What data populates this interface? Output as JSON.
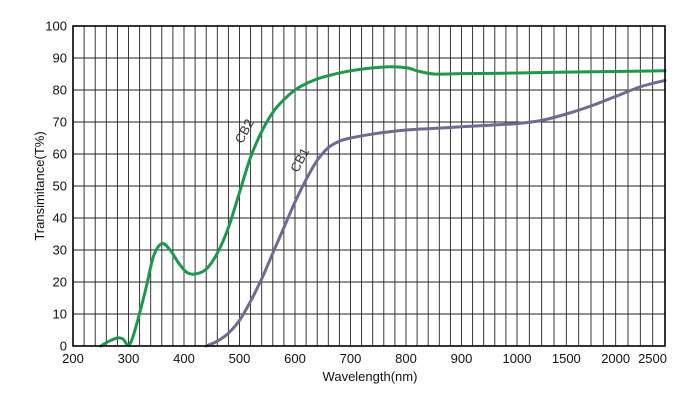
{
  "chart_data": {
    "type": "line",
    "title": "",
    "xlabel": "Wavelength(nm)",
    "ylabel": "Transimitance(T%)",
    "x_ticks": [
      "200",
      "300",
      "400",
      "500",
      "600",
      "700",
      "800",
      "900",
      "1000",
      "1500",
      "2000",
      "2500"
    ],
    "ylim": [
      0,
      100
    ],
    "y_ticks": [
      "0",
      "10",
      "20",
      "30",
      "40",
      "50",
      "60",
      "70",
      "80",
      "90",
      "100"
    ],
    "grid": true,
    "legend": "none",
    "series": [
      {
        "name": "CB2",
        "color": "#1a9a4c",
        "points": [
          [
            250,
            0
          ],
          [
            265,
            1.5
          ],
          [
            280,
            2.5
          ],
          [
            290,
            2.2
          ],
          [
            300,
            0.3
          ],
          [
            310,
            4
          ],
          [
            330,
            17
          ],
          [
            345,
            28
          ],
          [
            360,
            32
          ],
          [
            375,
            30
          ],
          [
            390,
            26
          ],
          [
            405,
            23
          ],
          [
            420,
            22.5
          ],
          [
            440,
            24
          ],
          [
            460,
            29
          ],
          [
            480,
            37
          ],
          [
            500,
            48
          ],
          [
            520,
            59
          ],
          [
            540,
            67
          ],
          [
            560,
            73
          ],
          [
            580,
            77
          ],
          [
            600,
            80
          ],
          [
            620,
            82
          ],
          [
            650,
            84
          ],
          [
            700,
            86
          ],
          [
            760,
            87.2
          ],
          [
            800,
            87
          ],
          [
            820,
            86
          ],
          [
            850,
            85
          ],
          [
            900,
            85.1
          ],
          [
            1000,
            85.3
          ],
          [
            1500,
            85.6
          ],
          [
            2000,
            85.8
          ],
          [
            2500,
            86
          ]
        ]
      },
      {
        "name": "CB1",
        "color": "#6e6a95",
        "points": [
          [
            440,
            0
          ],
          [
            460,
            1.5
          ],
          [
            480,
            4
          ],
          [
            500,
            8
          ],
          [
            520,
            14
          ],
          [
            540,
            21
          ],
          [
            560,
            29
          ],
          [
            580,
            37
          ],
          [
            600,
            45
          ],
          [
            620,
            52
          ],
          [
            640,
            58
          ],
          [
            660,
            62
          ],
          [
            680,
            64
          ],
          [
            700,
            65
          ],
          [
            750,
            66.5
          ],
          [
            800,
            67.5
          ],
          [
            850,
            68
          ],
          [
            900,
            68.5
          ],
          [
            950,
            69
          ],
          [
            1000,
            69.5
          ],
          [
            1250,
            70.5
          ],
          [
            1500,
            72.5
          ],
          [
            1750,
            75
          ],
          [
            2000,
            78
          ],
          [
            2250,
            81
          ],
          [
            2500,
            83
          ]
        ]
      }
    ]
  }
}
